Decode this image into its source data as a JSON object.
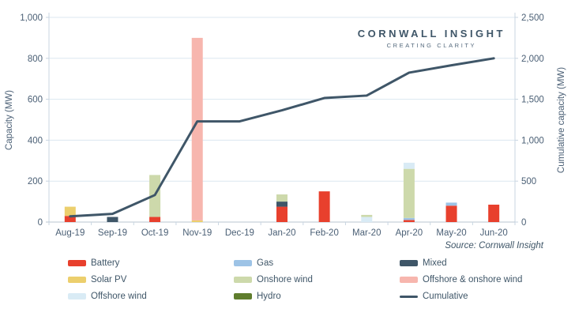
{
  "logo": {
    "line1": "CORNWALL INSIGHT",
    "line2": "CREATING CLARITY"
  },
  "source": "Source: Cornwall Insight",
  "legend": [
    {
      "label": "Battery",
      "color": "#e8402d",
      "shape": "box"
    },
    {
      "label": "Gas",
      "color": "#9dc3e6",
      "shape": "box"
    },
    {
      "label": "Mixed",
      "color": "#3f5668",
      "shape": "box"
    },
    {
      "label": "Solar PV",
      "color": "#eccf6d",
      "shape": "box"
    },
    {
      "label": "Onshore wind",
      "color": "#cdd9ab",
      "shape": "box"
    },
    {
      "label": "Offshore & onshore wind",
      "color": "#f7b6ae",
      "shape": "box"
    },
    {
      "label": "Offshore wind",
      "color": "#d9ebf5",
      "shape": "box"
    },
    {
      "label": "Hydro",
      "color": "#5f7d2d",
      "shape": "box"
    },
    {
      "label": "Cumulative",
      "color": "#3f5668",
      "shape": "line"
    }
  ],
  "chart_data": {
    "type": "bar+line",
    "title": "",
    "categories": [
      "Aug-19",
      "Sep-19",
      "Oct-19",
      "Nov-19",
      "Dec-19",
      "Jan-20",
      "Feb-20",
      "Mar-20",
      "Apr-20",
      "May-20",
      "Jun-20"
    ],
    "stacked_bars": [
      [
        {
          "series": "Battery",
          "value": 30
        },
        {
          "series": "Solar PV",
          "value": 45
        }
      ],
      [
        {
          "series": "Mixed",
          "value": 25
        }
      ],
      [
        {
          "series": "Battery",
          "value": 25
        },
        {
          "series": "Onshore wind",
          "value": 205
        }
      ],
      [
        {
          "series": "Solar PV",
          "value": 8
        },
        {
          "series": "Offshore & onshore wind",
          "value": 892
        }
      ],
      [],
      [
        {
          "series": "Battery",
          "value": 75
        },
        {
          "series": "Mixed",
          "value": 25
        },
        {
          "series": "Onshore wind",
          "value": 35
        }
      ],
      [
        {
          "series": "Battery",
          "value": 150
        }
      ],
      [
        {
          "series": "Offshore wind",
          "value": 25
        },
        {
          "series": "Onshore wind",
          "value": 10
        }
      ],
      [
        {
          "series": "Battery",
          "value": 10
        },
        {
          "series": "Gas",
          "value": 10
        },
        {
          "series": "Onshore wind",
          "value": 240
        },
        {
          "series": "Offshore wind",
          "value": 30
        }
      ],
      [
        {
          "series": "Battery",
          "value": 80
        },
        {
          "series": "Gas",
          "value": 15
        }
      ],
      [
        {
          "series": "Battery",
          "value": 85
        }
      ]
    ],
    "line_series": {
      "name": "Cumulative",
      "values": [
        70,
        100,
        330,
        1230,
        1230,
        1365,
        1515,
        1545,
        1825,
        1915,
        2000
      ]
    },
    "left_axis": {
      "label": "Capacity (MW)",
      "min": 0,
      "max": 1000,
      "step": 200
    },
    "right_axis": {
      "label": "Cumulative capacity (MW)",
      "min": 0,
      "max": 2500,
      "step": 500
    },
    "grid": true,
    "legend_position": "bottom",
    "colors_note": {
      "grid": "#dce7f0",
      "axis_line": "#c9d6e2",
      "text": "#4a5f75"
    }
  }
}
